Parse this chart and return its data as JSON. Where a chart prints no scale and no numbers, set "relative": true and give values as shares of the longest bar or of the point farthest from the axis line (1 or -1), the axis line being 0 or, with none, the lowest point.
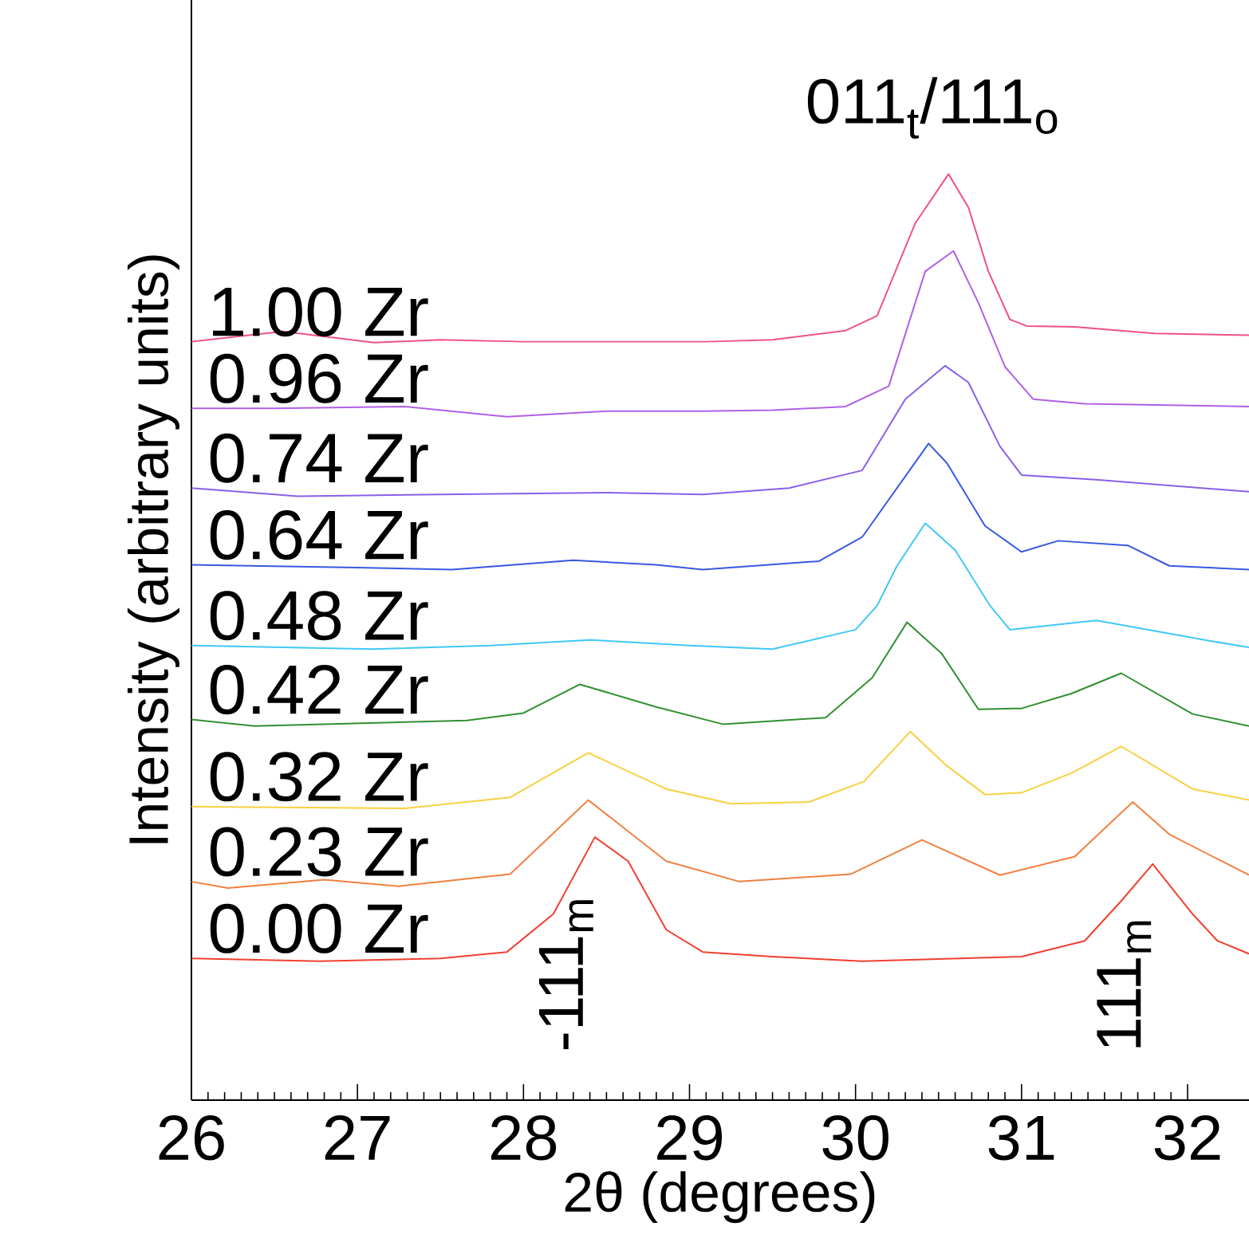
{
  "chart_data": {
    "type": "line",
    "xlabel": "2θ (degrees)",
    "ylabel": "Intensity (arbitrary units)",
    "relative": true,
    "xlim": [
      26,
      32.37
    ],
    "xticks": [
      26,
      27,
      28,
      29,
      30,
      31,
      32
    ],
    "tick_labels": "x",
    "legend": false,
    "grid": false,
    "line_style": "solid",
    "annotations": [
      {
        "text": "011$_{t}$/111$_{o}$",
        "x": 30.56,
        "y": 1.0
      },
      {
        "text": "-111$_{m}$",
        "x": 28.43,
        "y": 0.284
      },
      {
        "text": "111$_{m}$",
        "x": 31.79,
        "y": 0.255
      }
    ],
    "series": [
      {
        "name": "1.00 Zr",
        "color": "#f0508c",
        "x": [
          26,
          26.55,
          27.1,
          27.5,
          28,
          28.5,
          29.1,
          29.5,
          29.94,
          30.13,
          30.36,
          30.56,
          30.68,
          30.8,
          30.93,
          31.03,
          31.32,
          31.8,
          32.37
        ],
        "values": [
          0.819,
          0.83,
          0.818,
          0.821,
          0.819,
          0.819,
          0.819,
          0.821,
          0.831,
          0.847,
          0.947,
          1.0,
          0.964,
          0.895,
          0.843,
          0.836,
          0.835,
          0.828,
          0.826
        ]
      },
      {
        "name": "0.96 Zr",
        "color": "#b060e8",
        "x": [
          26,
          26.5,
          27.28,
          27.9,
          28.5,
          29.08,
          29.5,
          29.94,
          30.2,
          30.42,
          30.59,
          30.74,
          30.9,
          31.07,
          31.38,
          32.37
        ],
        "values": [
          0.747,
          0.747,
          0.749,
          0.738,
          0.744,
          0.744,
          0.745,
          0.749,
          0.771,
          0.895,
          0.917,
          0.861,
          0.792,
          0.757,
          0.752,
          0.749
        ]
      },
      {
        "name": "0.74 Zr",
        "color": "#8a60e8",
        "x": [
          26,
          26.64,
          27.5,
          28.5,
          29.08,
          29.6,
          30.04,
          30.3,
          30.54,
          30.68,
          30.87,
          31.0,
          31.45,
          32.37
        ],
        "values": [
          0.661,
          0.652,
          0.654,
          0.656,
          0.654,
          0.661,
          0.68,
          0.757,
          0.793,
          0.775,
          0.706,
          0.675,
          0.67,
          0.657
        ]
      },
      {
        "name": "0.64 Zr",
        "color": "#3858e0",
        "x": [
          26,
          27,
          27.57,
          28.3,
          28.8,
          29.08,
          29.78,
          30.04,
          30.44,
          30.55,
          30.78,
          31.0,
          31.22,
          31.64,
          31.89,
          32.37
        ],
        "values": [
          0.578,
          0.575,
          0.573,
          0.583,
          0.578,
          0.573,
          0.582,
          0.608,
          0.709,
          0.688,
          0.62,
          0.592,
          0.604,
          0.599,
          0.577,
          0.573
        ]
      },
      {
        "name": "0.48 Zr",
        "color": "#40c8f8",
        "x": [
          26,
          27.09,
          27.8,
          28.4,
          29.0,
          29.5,
          30.0,
          30.13,
          30.25,
          30.42,
          30.6,
          30.81,
          30.93,
          31.45,
          32.13,
          32.37
        ],
        "values": [
          0.491,
          0.487,
          0.491,
          0.497,
          0.491,
          0.487,
          0.508,
          0.534,
          0.577,
          0.623,
          0.594,
          0.534,
          0.508,
          0.518,
          0.496,
          0.489
        ]
      },
      {
        "name": "0.42 Zr",
        "color": "#309030",
        "x": [
          26,
          26.38,
          27.66,
          28.0,
          28.34,
          28.79,
          29.2,
          29.82,
          30.1,
          30.31,
          30.52,
          30.74,
          31.0,
          31.3,
          31.6,
          32.03,
          32.37
        ],
        "values": [
          0.411,
          0.404,
          0.41,
          0.418,
          0.449,
          0.425,
          0.406,
          0.413,
          0.456,
          0.516,
          0.482,
          0.422,
          0.423,
          0.439,
          0.461,
          0.417,
          0.404
        ]
      },
      {
        "name": "0.32 Zr",
        "color": "#f8d040",
        "x": [
          26,
          27.28,
          27.92,
          28.39,
          28.86,
          29.25,
          29.72,
          30.05,
          30.33,
          30.55,
          30.78,
          31.0,
          31.3,
          31.6,
          32.03,
          32.37
        ],
        "values": [
          0.317,
          0.315,
          0.327,
          0.375,
          0.336,
          0.32,
          0.322,
          0.344,
          0.398,
          0.361,
          0.33,
          0.332,
          0.353,
          0.382,
          0.336,
          0.324
        ]
      },
      {
        "name": "0.23 Zr",
        "color": "#f08040",
        "x": [
          26,
          26.22,
          26.8,
          27.25,
          27.92,
          28.39,
          28.86,
          29.3,
          29.97,
          30.4,
          30.87,
          31.32,
          31.67,
          31.89,
          32.37
        ],
        "values": [
          0.236,
          0.229,
          0.238,
          0.231,
          0.244,
          0.324,
          0.258,
          0.236,
          0.244,
          0.281,
          0.243,
          0.263,
          0.322,
          0.287,
          0.243
        ]
      },
      {
        "name": "0.00 Zr",
        "color": "#f04030",
        "x": [
          26,
          26.77,
          27.5,
          27.9,
          28.18,
          28.43,
          28.63,
          28.86,
          29.08,
          29.5,
          30.04,
          31.0,
          31.38,
          31.6,
          31.79,
          32.03,
          32.18,
          32.37
        ],
        "values": [
          0.153,
          0.15,
          0.153,
          0.16,
          0.201,
          0.284,
          0.258,
          0.184,
          0.16,
          0.155,
          0.15,
          0.155,
          0.172,
          0.215,
          0.255,
          0.201,
          0.172,
          0.158
        ]
      }
    ]
  }
}
